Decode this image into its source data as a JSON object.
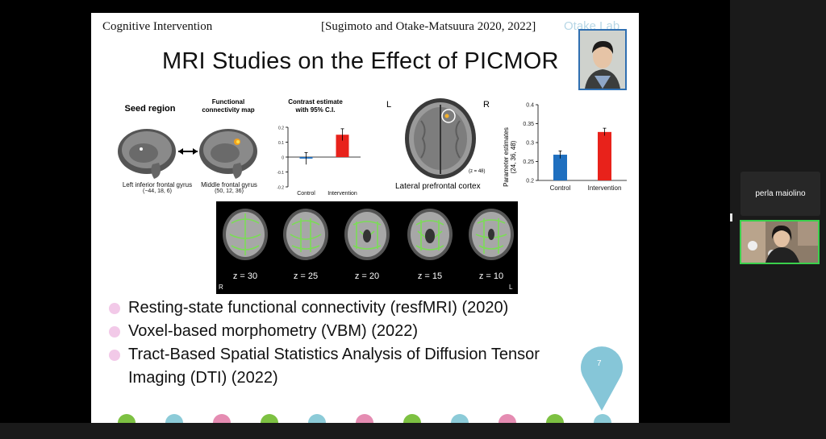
{
  "slide": {
    "header_left": "Cognitive Intervention",
    "header_right": "[Sugimoto and Otake-Matsuura 2020, 2022]",
    "watermark": "Otake Lab",
    "title": "MRI Studies on the Effect of PICMOR",
    "page_number": "7"
  },
  "figure_left": {
    "seed_label": "Seed region",
    "fc_label_1": "Functional",
    "fc_label_2": "connectivity map",
    "region1_1": "Left inferior frontal gyrus",
    "region1_2": "(−44, 18, 6)",
    "region2_1": "Middle frontal gyrus",
    "region2_2": "(50, 12, 36)"
  },
  "chart_data": [
    {
      "type": "bar",
      "title": "Contrast estimate with 95% C.I.",
      "title_line1": "Contrast estimate",
      "title_line2": "with 95% C.I.",
      "categories": [
        "Control",
        "Intervention"
      ],
      "values": [
        -0.01,
        0.15
      ],
      "errors": [
        0.04,
        0.04
      ],
      "colors": [
        "#1f6fbf",
        "#e8221b"
      ],
      "ylim": [
        -0.2,
        0.2
      ],
      "ticks": [
        "0.2",
        "0.1",
        "0",
        "-0.1",
        "-0.2"
      ]
    },
    {
      "type": "bar",
      "ylabel": "Parameter estimates (24, 36, 48)",
      "ylabel_line1": "Parameter estimates",
      "ylabel_line2": "(24, 36, 48)",
      "categories": [
        "Control",
        "Intervention"
      ],
      "values": [
        0.268,
        0.328
      ],
      "errors": [
        0.01,
        0.01
      ],
      "colors": [
        "#1f6fbf",
        "#e8221b"
      ],
      "ylim": [
        0.2,
        0.4
      ],
      "ticks": [
        "0.4",
        "0.35",
        "0.3",
        "0.25",
        "0.2"
      ]
    }
  ],
  "figure_mid": {
    "left": "L",
    "right": "R",
    "z": "(z = 48)",
    "caption": "Lateral prefrontal cortex"
  },
  "dti": {
    "slices": [
      "z = 30",
      "z = 25",
      "z = 20",
      "z = 15",
      "z = 10"
    ],
    "r": "R",
    "l": "L"
  },
  "bullets": [
    "Resting-state functional connectivity (resfMRI) (2020)",
    "Voxel-based morphometry (VBM) (2022)",
    "Tract-Based Spatial Statistics Analysis of Diffusion Tensor Imaging (DTI) (2022)"
  ],
  "participant": {
    "name": "perla maiolino"
  },
  "colors": {
    "bead_green": "#7dc142",
    "bead_blue": "#8ccbd8",
    "bead_pink": "#e58cb2",
    "pin": "#86c6d8",
    "bullet": "#f2c9e8"
  }
}
